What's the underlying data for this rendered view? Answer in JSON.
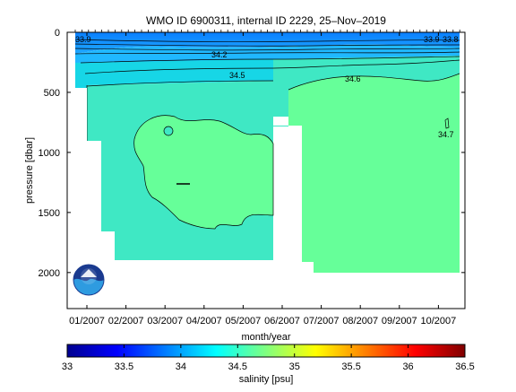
{
  "chart_data": {
    "type": "heatmap",
    "title": "WMO ID 6900311, internal ID 2229, 25–Nov–2019",
    "xlabel": "month/year",
    "ylabel": "pressure [dbar]",
    "x_ticks": [
      "01/2007",
      "02/2007",
      "03/2007",
      "04/2007",
      "05/2007",
      "06/2007",
      "07/2007",
      "08/2007",
      "09/2007",
      "10/2007"
    ],
    "y_ticks": [
      0,
      500,
      1000,
      1500,
      2000
    ],
    "y_range": [
      0,
      2300
    ],
    "y_reversed": true,
    "colorbar": {
      "label": "salinity [psu]",
      "ticks": [
        33,
        33.5,
        34,
        34.5,
        35,
        35.5,
        36,
        36.5
      ],
      "range": [
        33,
        36.5
      ],
      "colormap": "jet"
    },
    "contour_labels": [
      "33.9",
      "34.2",
      "34.5",
      "34.6",
      "33.9",
      "33.8",
      "34.7"
    ],
    "field": {
      "surface_salinity": 33.9,
      "upper_layer_salinity": 34.2,
      "deep_salinity": 34.5,
      "deep_salinity_east": 34.6,
      "color_upper": "#1FA8FF",
      "color_mid": "#17D6E6",
      "color_deep": "#3FE8C4",
      "color_east": "#66FF99"
    },
    "logo": "NOAA logo"
  }
}
